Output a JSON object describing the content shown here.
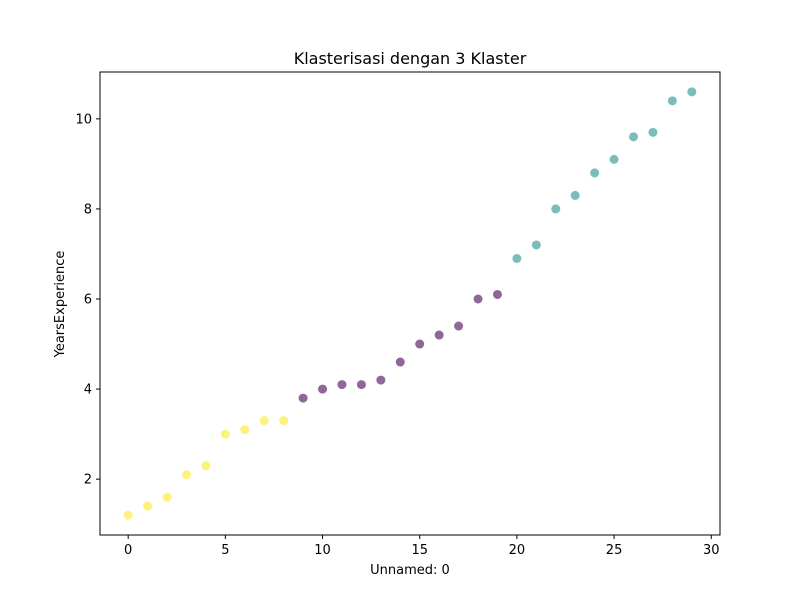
{
  "chart_data": {
    "type": "scatter",
    "title": "Klasterisasi dengan 3 Klaster",
    "xlabel": "Unnamed: 0",
    "ylabel": "YearsExperience",
    "xlim": [
      -1.45,
      30.45
    ],
    "ylim": [
      0.76,
      11.04
    ],
    "xticks": [
      0,
      5,
      10,
      15,
      20,
      25,
      30
    ],
    "yticks": [
      2,
      4,
      6,
      8,
      10
    ],
    "grid": false,
    "legend": false,
    "cluster_colors": [
      "#440154",
      "#21918c",
      "#fde725"
    ],
    "marker_alpha": 0.6,
    "points": [
      {
        "x": 0,
        "y": 1.2,
        "cluster": 2
      },
      {
        "x": 1,
        "y": 1.4,
        "cluster": 2
      },
      {
        "x": 2,
        "y": 1.6,
        "cluster": 2
      },
      {
        "x": 3,
        "y": 2.1,
        "cluster": 2
      },
      {
        "x": 4,
        "y": 2.3,
        "cluster": 2
      },
      {
        "x": 5,
        "y": 3.0,
        "cluster": 2
      },
      {
        "x": 6,
        "y": 3.1,
        "cluster": 2
      },
      {
        "x": 7,
        "y": 3.3,
        "cluster": 2
      },
      {
        "x": 8,
        "y": 3.3,
        "cluster": 2
      },
      {
        "x": 9,
        "y": 3.8,
        "cluster": 0
      },
      {
        "x": 10,
        "y": 4.0,
        "cluster": 0
      },
      {
        "x": 11,
        "y": 4.1,
        "cluster": 0
      },
      {
        "x": 12,
        "y": 4.1,
        "cluster": 0
      },
      {
        "x": 13,
        "y": 4.2,
        "cluster": 0
      },
      {
        "x": 14,
        "y": 4.6,
        "cluster": 0
      },
      {
        "x": 15,
        "y": 5.0,
        "cluster": 0
      },
      {
        "x": 16,
        "y": 5.2,
        "cluster": 0
      },
      {
        "x": 17,
        "y": 5.4,
        "cluster": 0
      },
      {
        "x": 18,
        "y": 6.0,
        "cluster": 0
      },
      {
        "x": 19,
        "y": 6.1,
        "cluster": 0
      },
      {
        "x": 20,
        "y": 6.9,
        "cluster": 1
      },
      {
        "x": 21,
        "y": 7.2,
        "cluster": 1
      },
      {
        "x": 22,
        "y": 8.0,
        "cluster": 1
      },
      {
        "x": 23,
        "y": 8.3,
        "cluster": 1
      },
      {
        "x": 24,
        "y": 8.8,
        "cluster": 1
      },
      {
        "x": 25,
        "y": 9.1,
        "cluster": 1
      },
      {
        "x": 26,
        "y": 9.6,
        "cluster": 1
      },
      {
        "x": 27,
        "y": 9.7,
        "cluster": 1
      },
      {
        "x": 28,
        "y": 10.4,
        "cluster": 1
      },
      {
        "x": 29,
        "y": 10.6,
        "cluster": 1
      }
    ]
  }
}
